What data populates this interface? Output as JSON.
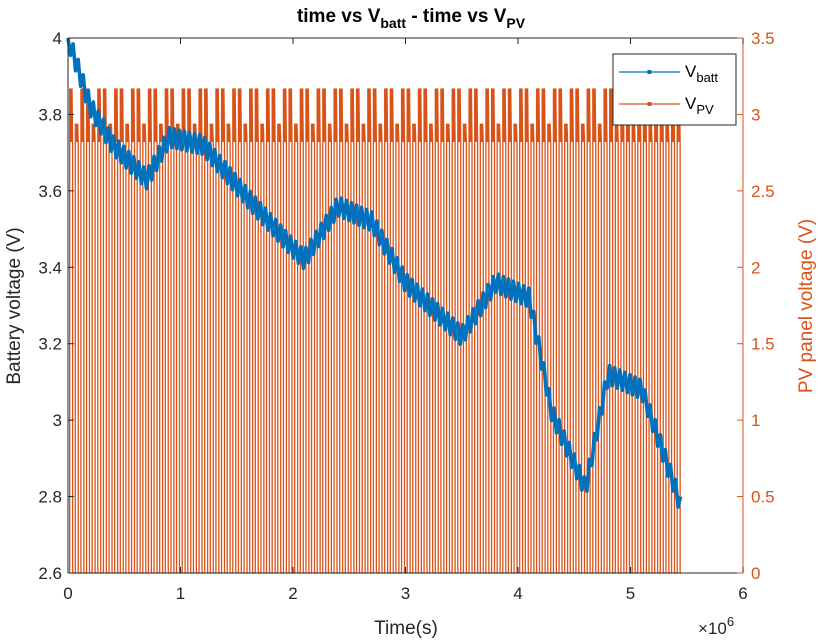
{
  "chart_data": {
    "type": "line",
    "title": {
      "main": "time vs V",
      "sub1": "batt",
      "mid": " - time vs V",
      "sub2": "PV"
    },
    "xlabel": "Time(s)",
    "x_exponent": {
      "base": "×10",
      "power": "6"
    },
    "ylabel_left": "Battery voltage (V)",
    "ylabel_right": "PV panel voltage (V)",
    "xlim": [
      0,
      6
    ],
    "ylim_left": [
      2.6,
      4
    ],
    "ylim_right": [
      0,
      3.5
    ],
    "x_ticks": [
      "0",
      "1",
      "2",
      "3",
      "4",
      "5",
      "6"
    ],
    "y_left_ticks": [
      "2.6",
      "2.8",
      "3",
      "3.2",
      "3.4",
      "3.6",
      "3.8",
      "4"
    ],
    "y_right_ticks": [
      "0",
      "0.5",
      "1",
      "1.5",
      "2",
      "2.5",
      "3",
      "3.5"
    ],
    "grid": false,
    "legend_position": "top-right",
    "series": [
      {
        "name": {
          "base": "V",
          "sub": "batt"
        },
        "axis": "left",
        "color": "#0072BD",
        "envelope_x": [
          0,
          0.2,
          0.4,
          0.7,
          0.9,
          1.2,
          1.6,
          2.0,
          2.1,
          2.4,
          2.7,
          3.0,
          3.5,
          3.8,
          4.1,
          4.3,
          4.6,
          4.8,
          5.1,
          5.4,
          5.45
        ],
        "envelope_y": [
          4.0,
          3.82,
          3.72,
          3.63,
          3.74,
          3.72,
          3.58,
          3.45,
          3.42,
          3.56,
          3.52,
          3.36,
          3.22,
          3.36,
          3.32,
          3.02,
          2.82,
          3.12,
          3.08,
          2.82,
          2.77
        ],
        "ripple_amplitude": 0.05,
        "ripple_period": 0.045
      },
      {
        "name": {
          "base": "V",
          "sub": "PV"
        },
        "axis": "right",
        "color": "#D95319",
        "pulse_period": 0.05,
        "pulse_duty": 0.52,
        "pulse_start": 0.015,
        "pulse_end": 5.45,
        "high_min": 2.82,
        "high_max": 3.17
      }
    ]
  }
}
